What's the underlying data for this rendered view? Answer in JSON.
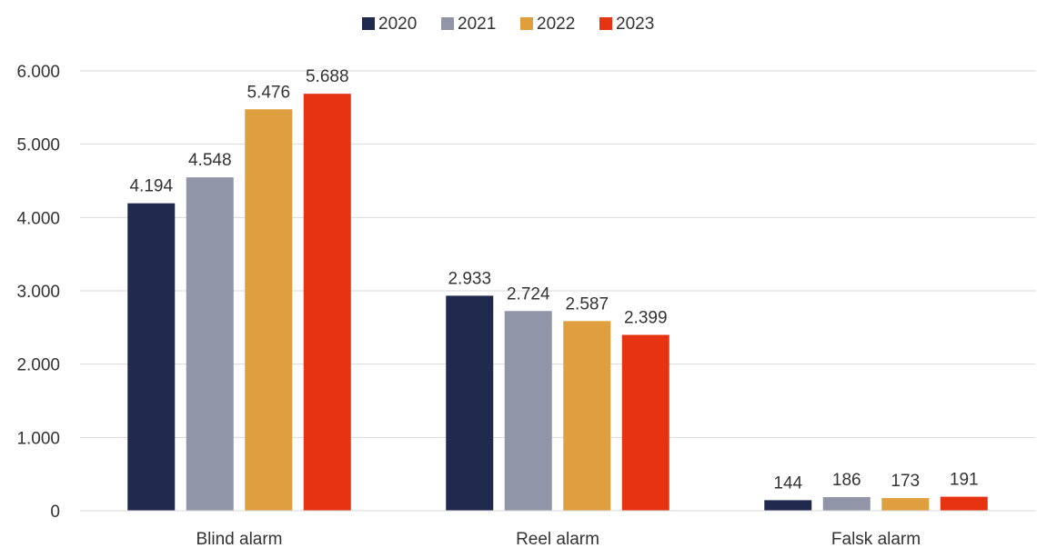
{
  "chart_data": {
    "type": "bar",
    "title": "",
    "xlabel": "",
    "ylabel": "",
    "categories": [
      "Blind alarm",
      "Reel alarm",
      "Falsk alarm"
    ],
    "series": [
      {
        "name": "2020",
        "color": "#202a4e",
        "values": [
          4194,
          2933,
          144
        ],
        "labels": [
          "4.194",
          "2.933",
          "144"
        ]
      },
      {
        "name": "2021",
        "color": "#9095a8",
        "values": [
          4548,
          2724,
          186
        ],
        "labels": [
          "4.548",
          "2.724",
          "186"
        ]
      },
      {
        "name": "2022",
        "color": "#e09f3e",
        "values": [
          5476,
          2587,
          173
        ],
        "labels": [
          "5.476",
          "2.587",
          "173"
        ]
      },
      {
        "name": "2023",
        "color": "#e63312",
        "values": [
          5688,
          2399,
          191
        ],
        "labels": [
          "5.688",
          "2.399",
          "191"
        ]
      }
    ],
    "ylim": [
      0,
      6000
    ],
    "yticks": [
      0,
      1000,
      2000,
      3000,
      4000,
      5000,
      6000
    ],
    "ytick_labels": [
      "0",
      "1.000",
      "2.000",
      "3.000",
      "4.000",
      "5.000",
      "6.000"
    ],
    "grid": true,
    "legend_position": "top-center"
  }
}
